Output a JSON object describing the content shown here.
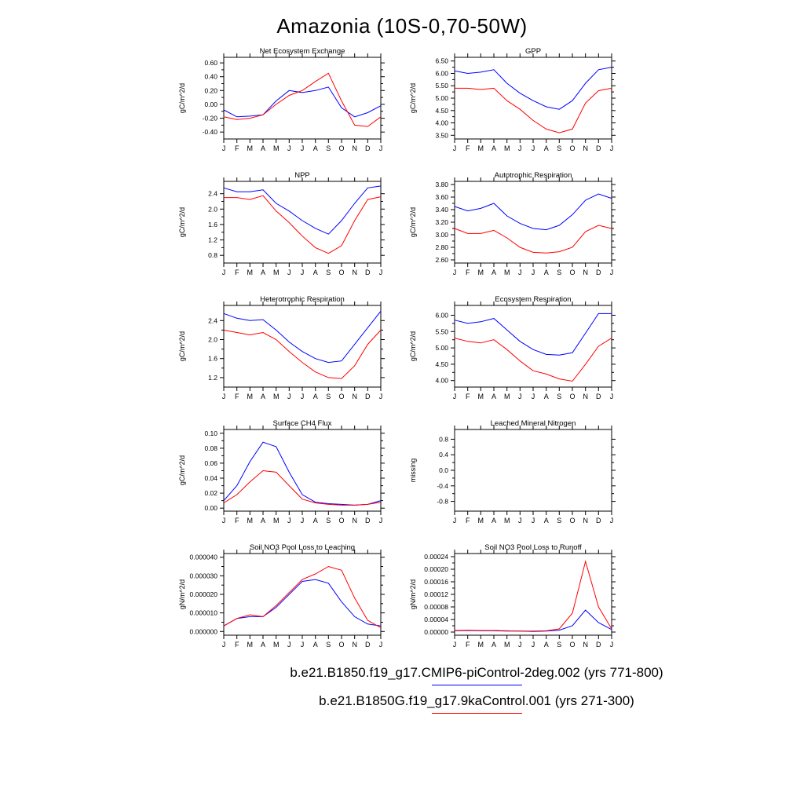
{
  "title": "Amazonia (10S-0,70-50W)",
  "legend": {
    "entries": [
      {
        "label": "b.e21.B1850.f19_g17.CMIP6-piControl-2deg.002 (yrs 771-800)",
        "color": "#0000ff"
      },
      {
        "label": "b.e21.B1850G.f19_g17.9kaControl.001 (yrs 271-300)",
        "color": "#ff0000"
      }
    ]
  },
  "chart_data": [
    {
      "type": "line",
      "title": "Net Ecosystem Exchange",
      "ylabel": "gC/m^2/d",
      "categories": [
        "J",
        "F",
        "M",
        "A",
        "M",
        "J",
        "J",
        "A",
        "S",
        "O",
        "N",
        "D",
        "J"
      ],
      "yticks": [
        -0.4,
        -0.2,
        0.0,
        0.2,
        0.4,
        0.6
      ],
      "ydecimals": 2,
      "ylim": [
        -0.5,
        0.68
      ],
      "series": [
        {
          "name": "piControl-2deg",
          "values": [
            -0.08,
            -0.18,
            -0.17,
            -0.15,
            0.05,
            0.2,
            0.17,
            0.2,
            0.25,
            -0.05,
            -0.18,
            -0.12,
            -0.02
          ]
        },
        {
          "name": "9kaControl",
          "values": [
            -0.18,
            -0.22,
            -0.2,
            -0.15,
            0.0,
            0.13,
            0.2,
            0.33,
            0.45,
            0.05,
            -0.3,
            -0.32,
            -0.18
          ]
        }
      ]
    },
    {
      "type": "line",
      "title": "GPP",
      "ylabel": "gC/m^2/d",
      "categories": [
        "J",
        "F",
        "M",
        "A",
        "M",
        "J",
        "J",
        "A",
        "S",
        "O",
        "N",
        "D",
        "J"
      ],
      "yticks": [
        3.5,
        4.0,
        4.5,
        5.0,
        5.5,
        6.0,
        6.5
      ],
      "ydecimals": 2,
      "ylim": [
        3.35,
        6.65
      ],
      "series": [
        {
          "name": "piControl-2deg",
          "values": [
            6.1,
            6.0,
            6.05,
            6.15,
            5.6,
            5.2,
            4.9,
            4.65,
            4.55,
            4.9,
            5.6,
            6.15,
            6.25
          ]
        },
        {
          "name": "9kaControl",
          "values": [
            5.4,
            5.4,
            5.35,
            5.4,
            4.9,
            4.55,
            4.1,
            3.75,
            3.6,
            3.75,
            4.8,
            5.3,
            5.4
          ]
        }
      ]
    },
    {
      "type": "line",
      "title": "NPP",
      "ylabel": "gC/m^2/d",
      "categories": [
        "J",
        "F",
        "M",
        "A",
        "M",
        "J",
        "J",
        "A",
        "S",
        "O",
        "N",
        "D",
        "J"
      ],
      "yticks": [
        0.8,
        1.2,
        1.6,
        2.0,
        2.4
      ],
      "ydecimals": 1,
      "ylim": [
        0.6,
        2.72
      ],
      "series": [
        {
          "name": "piControl-2deg",
          "values": [
            2.55,
            2.45,
            2.45,
            2.5,
            2.15,
            1.95,
            1.7,
            1.5,
            1.35,
            1.7,
            2.15,
            2.55,
            2.6
          ]
        },
        {
          "name": "9kaControl",
          "values": [
            2.3,
            2.3,
            2.25,
            2.35,
            1.95,
            1.65,
            1.3,
            1.0,
            0.85,
            1.05,
            1.7,
            2.25,
            2.32
          ]
        }
      ]
    },
    {
      "type": "line",
      "title": "Autotrophic Respiration",
      "ylabel": "gC/m^2/d",
      "categories": [
        "J",
        "F",
        "M",
        "A",
        "M",
        "J",
        "J",
        "A",
        "S",
        "O",
        "N",
        "D",
        "J"
      ],
      "yticks": [
        2.6,
        2.8,
        3.0,
        3.2,
        3.4,
        3.6,
        3.8
      ],
      "ydecimals": 2,
      "ylim": [
        2.55,
        3.85
      ],
      "series": [
        {
          "name": "piControl-2deg",
          "values": [
            3.45,
            3.38,
            3.42,
            3.5,
            3.3,
            3.18,
            3.1,
            3.08,
            3.15,
            3.32,
            3.55,
            3.65,
            3.58
          ]
        },
        {
          "name": "9kaControl",
          "values": [
            3.1,
            3.02,
            3.02,
            3.07,
            2.95,
            2.8,
            2.72,
            2.71,
            2.73,
            2.8,
            3.05,
            3.15,
            3.1
          ]
        }
      ]
    },
    {
      "type": "line",
      "title": "Heterotrophic Respiration",
      "ylabel": "gC/m^2/d",
      "categories": [
        "J",
        "F",
        "M",
        "A",
        "M",
        "J",
        "J",
        "A",
        "S",
        "O",
        "N",
        "D",
        "J"
      ],
      "yticks": [
        1.2,
        1.6,
        2.0,
        2.4
      ],
      "ydecimals": 1,
      "ylim": [
        1.0,
        2.72
      ],
      "series": [
        {
          "name": "piControl-2deg",
          "values": [
            2.55,
            2.45,
            2.4,
            2.42,
            2.2,
            1.95,
            1.75,
            1.6,
            1.52,
            1.55,
            1.9,
            2.25,
            2.6
          ]
        },
        {
          "name": "9kaControl",
          "values": [
            2.2,
            2.15,
            2.1,
            2.15,
            2.0,
            1.75,
            1.52,
            1.32,
            1.2,
            1.18,
            1.45,
            1.9,
            2.2
          ]
        }
      ]
    },
    {
      "type": "line",
      "title": "Ecosystem Respiration",
      "ylabel": "gC/m^2/d",
      "categories": [
        "J",
        "F",
        "M",
        "A",
        "M",
        "J",
        "J",
        "A",
        "S",
        "O",
        "N",
        "D",
        "J"
      ],
      "yticks": [
        4.0,
        4.5,
        5.0,
        5.5,
        6.0
      ],
      "ydecimals": 2,
      "ylim": [
        3.8,
        6.3
      ],
      "series": [
        {
          "name": "piControl-2deg",
          "values": [
            5.85,
            5.75,
            5.8,
            5.9,
            5.55,
            5.2,
            4.95,
            4.8,
            4.78,
            4.85,
            5.45,
            6.05,
            6.05
          ]
        },
        {
          "name": "9kaControl",
          "values": [
            5.3,
            5.2,
            5.15,
            5.25,
            4.95,
            4.6,
            4.3,
            4.2,
            4.05,
            3.98,
            4.5,
            5.05,
            5.3
          ]
        }
      ]
    },
    {
      "type": "line",
      "title": "Surface CH4 Flux",
      "ylabel": "gC/m^2/d",
      "categories": [
        "J",
        "F",
        "M",
        "A",
        "M",
        "J",
        "J",
        "A",
        "S",
        "O",
        "N",
        "D",
        "J"
      ],
      "yticks": [
        0.0,
        0.02,
        0.04,
        0.06,
        0.08,
        0.1
      ],
      "ydecimals": 2,
      "ylim": [
        -0.004,
        0.105
      ],
      "series": [
        {
          "name": "piControl-2deg",
          "values": [
            0.01,
            0.03,
            0.062,
            0.088,
            0.082,
            0.048,
            0.018,
            0.008,
            0.006,
            0.005,
            0.004,
            0.005,
            0.01
          ]
        },
        {
          "name": "9kaControl",
          "values": [
            0.007,
            0.018,
            0.035,
            0.05,
            0.048,
            0.03,
            0.012,
            0.007,
            0.005,
            0.004,
            0.004,
            0.005,
            0.008
          ]
        }
      ]
    },
    {
      "type": "line",
      "title": "Leached Mineral Nitrogen",
      "ylabel": "missing",
      "categories": [
        "J",
        "F",
        "M",
        "A",
        "M",
        "J",
        "J",
        "A",
        "S",
        "O",
        "N",
        "D",
        "J"
      ],
      "yticks": [
        -0.8,
        -0.4,
        0.0,
        0.4,
        0.8
      ],
      "ydecimals": 1,
      "ylim": [
        -1.05,
        1.05
      ],
      "series": []
    },
    {
      "type": "line",
      "title": "Soil NO3 Pool Loss to Leaching",
      "ylabel": "gN/m^2/d",
      "categories": [
        "J",
        "F",
        "M",
        "A",
        "M",
        "J",
        "J",
        "A",
        "S",
        "O",
        "N",
        "D",
        "J"
      ],
      "yticks": [
        0.0,
        1e-05,
        2e-05,
        3e-05,
        4e-05
      ],
      "ydecimals": 6,
      "ylim": [
        -2e-06,
        4.2e-05
      ],
      "series": [
        {
          "name": "piControl-2deg",
          "values": [
            3e-06,
            7e-06,
            8e-06,
            8e-06,
            1.3e-05,
            2e-05,
            2.7e-05,
            2.8e-05,
            2.6e-05,
            1.6e-05,
            8e-06,
            4e-06,
            3e-06
          ]
        },
        {
          "name": "9kaControl",
          "values": [
            3e-06,
            7e-06,
            9e-06,
            8e-06,
            1.4e-05,
            2.1e-05,
            2.8e-05,
            3.1e-05,
            3.5e-05,
            3.3e-05,
            1.8e-05,
            6e-06,
            2e-06
          ]
        }
      ]
    },
    {
      "type": "line",
      "title": "Soil NO3 Pool Loss to Runoff",
      "ylabel": "gN/m^2/d",
      "categories": [
        "J",
        "F",
        "M",
        "A",
        "M",
        "J",
        "J",
        "A",
        "S",
        "O",
        "N",
        "D",
        "J"
      ],
      "yticks": [
        0.0,
        4e-05,
        8e-05,
        0.00012,
        0.00016,
        0.0002,
        0.00024
      ],
      "ydecimals": 5,
      "ylim": [
        -1e-05,
        0.00025
      ],
      "series": [
        {
          "name": "piControl-2deg",
          "values": [
            4e-06,
            5e-06,
            4e-06,
            4e-06,
            3e-06,
            3e-06,
            2e-06,
            3e-06,
            6e-06,
            2e-05,
            7e-05,
            3e-05,
            8e-06
          ]
        },
        {
          "name": "9kaControl",
          "values": [
            5e-06,
            6e-06,
            5e-06,
            5e-06,
            4e-06,
            3e-06,
            3e-06,
            4e-06,
            1e-05,
            6e-05,
            0.000225,
            8e-05,
            1e-05
          ]
        }
      ]
    }
  ]
}
